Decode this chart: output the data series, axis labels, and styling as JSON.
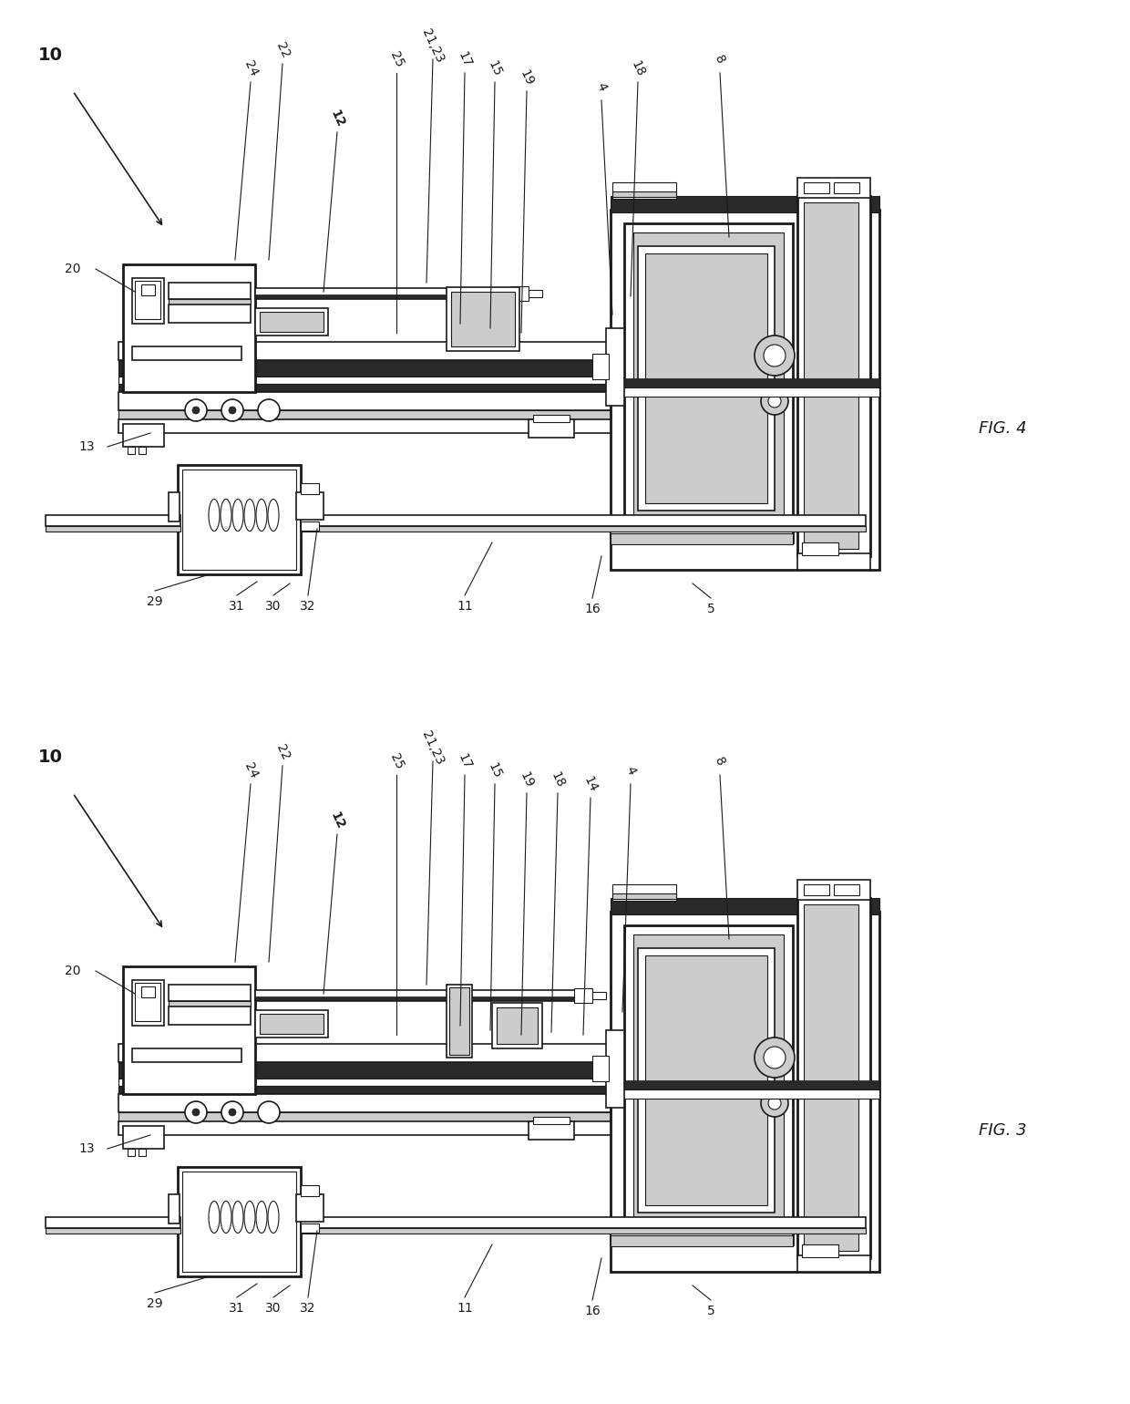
{
  "bg_color": "#ffffff",
  "line_color": "#1a1a1a",
  "dark_fill": "#2a2a2a",
  "gray_fill": "#888888",
  "light_gray": "#cccccc",
  "mid_gray": "#999999",
  "fig4_title": "FIG. 4",
  "fig3_title": "FIG. 3",
  "label_fontsize": 10,
  "title_fontsize": 13
}
